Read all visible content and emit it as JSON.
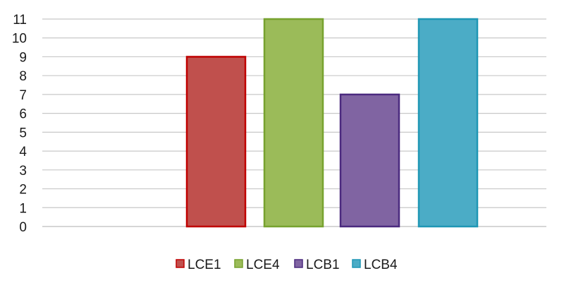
{
  "chart_data": {
    "type": "bar",
    "title": "",
    "xlabel": "",
    "ylabel": "",
    "ylim": [
      0,
      11
    ],
    "yticks": [
      0,
      1,
      2,
      3,
      4,
      5,
      6,
      7,
      8,
      9,
      10,
      11
    ],
    "grid": true,
    "legend_position": "bottom",
    "series": [
      {
        "name": "LCE1",
        "value": 9,
        "fill": "#c0504d",
        "stroke": "#c00000"
      },
      {
        "name": "LCE4",
        "value": 11,
        "fill": "#9bbb59",
        "stroke": "#77a22f"
      },
      {
        "name": "LCB1",
        "value": 7,
        "fill": "#8064a2",
        "stroke": "#4b2a7f"
      },
      {
        "name": "LCB4",
        "value": 11,
        "fill": "#4bacc6",
        "stroke": "#1f97b5"
      }
    ],
    "colors": {
      "grid": "#c8c8c8",
      "text": "#1a1a1a"
    }
  }
}
